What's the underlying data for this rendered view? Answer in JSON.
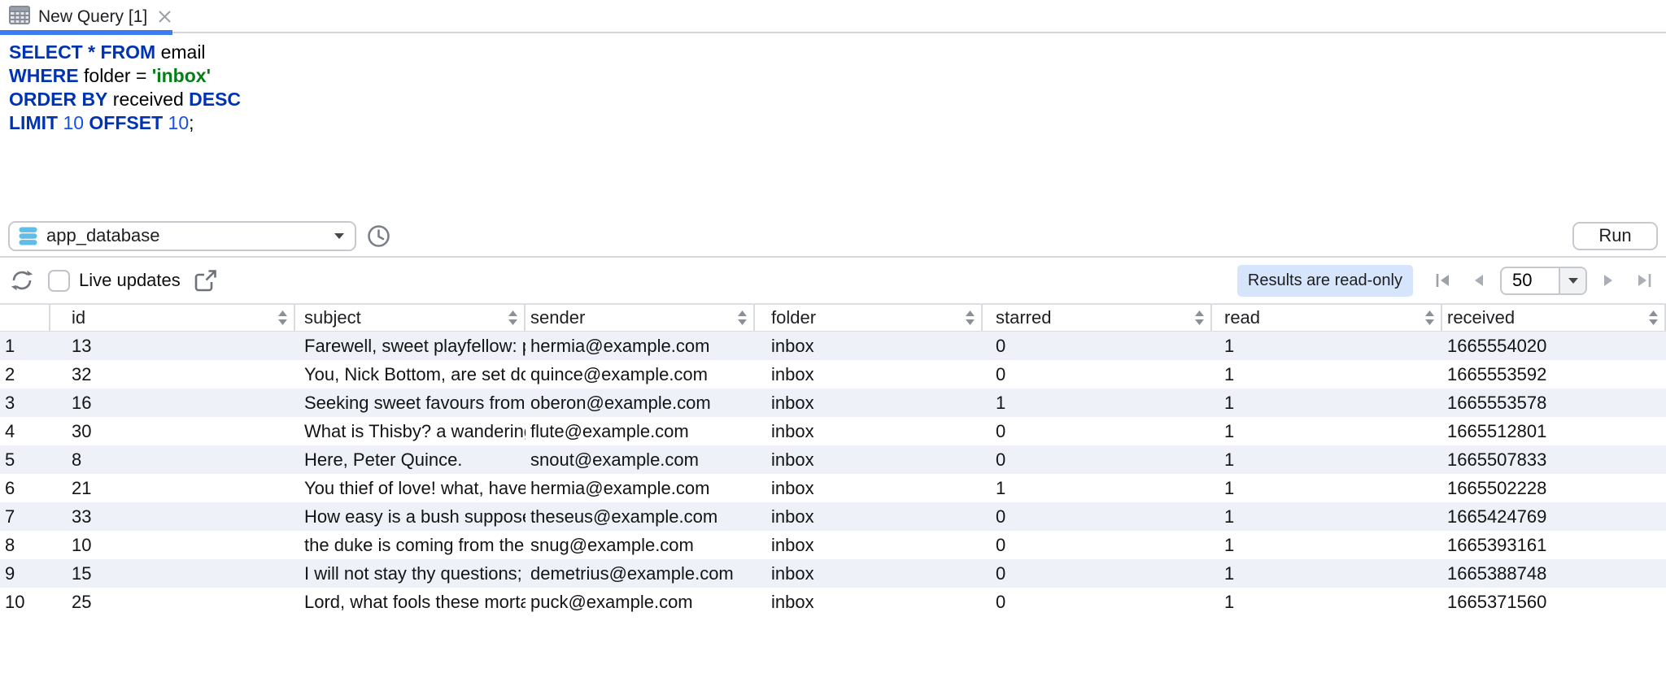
{
  "tab": {
    "title": "New Query [1]"
  },
  "sql_editor": {
    "lines": [
      {
        "tokens": [
          {
            "text": "SELECT",
            "type": "kw"
          },
          {
            "text": " ",
            "type": "pl"
          },
          {
            "text": "*",
            "type": "kw"
          },
          {
            "text": " ",
            "type": "pl"
          },
          {
            "text": "FROM",
            "type": "kw"
          },
          {
            "text": " email",
            "type": "pl"
          }
        ]
      },
      {
        "tokens": [
          {
            "text": "WHERE",
            "type": "kw"
          },
          {
            "text": " folder = ",
            "type": "pl"
          },
          {
            "text": "'inbox'",
            "type": "str"
          }
        ]
      },
      {
        "tokens": [
          {
            "text": "ORDER BY",
            "type": "kw"
          },
          {
            "text": " received ",
            "type": "pl"
          },
          {
            "text": "DESC",
            "type": "kw"
          }
        ]
      },
      {
        "tokens": [
          {
            "text": "LIMIT",
            "type": "kw"
          },
          {
            "text": " ",
            "type": "pl"
          },
          {
            "text": "10",
            "type": "num"
          },
          {
            "text": " ",
            "type": "pl"
          },
          {
            "text": "OFFSET",
            "type": "kw"
          },
          {
            "text": " ",
            "type": "pl"
          },
          {
            "text": "10",
            "type": "num"
          },
          {
            "text": ";",
            "type": "pl"
          }
        ]
      }
    ]
  },
  "query_bar": {
    "database_selector": {
      "value": "app_database",
      "icon": "database-icon"
    },
    "history_icon": "clock-icon",
    "run_button": "Run"
  },
  "results_toolbar": {
    "refresh_icon": "refresh-icon",
    "live_updates": {
      "checked": false,
      "label": "Live updates"
    },
    "open_in_new_icon": "open-in-new-window-icon",
    "readonly_badge": "Results are read-only",
    "pagination": {
      "first_icon": "first-page-icon",
      "prev_icon": "previous-page-icon",
      "page_size": "50",
      "next_icon": "next-page-icon",
      "last_icon": "last-page-icon"
    }
  },
  "results_table": {
    "columns": [
      {
        "key": "n",
        "label": "",
        "sortable": false
      },
      {
        "key": "id",
        "label": "id",
        "sortable": true
      },
      {
        "key": "subject",
        "label": "subject",
        "sortable": true
      },
      {
        "key": "sender",
        "label": "sender",
        "sortable": true
      },
      {
        "key": "folder",
        "label": "folder",
        "sortable": true
      },
      {
        "key": "starred",
        "label": "starred",
        "sortable": true
      },
      {
        "key": "read",
        "label": "read",
        "sortable": true
      },
      {
        "key": "received",
        "label": "received",
        "sortable": true
      }
    ],
    "rows": [
      {
        "n": "1",
        "id": "13",
        "subject": "Farewell, sweet playfellow: pray",
        "sender": "hermia@example.com",
        "folder": "inbox",
        "starred": "0",
        "read": "1",
        "received": "1665554020"
      },
      {
        "n": "2",
        "id": "32",
        "subject": "You, Nick Bottom, are set down",
        "sender": "quince@example.com",
        "folder": "inbox",
        "starred": "0",
        "read": "1",
        "received": "1665553592"
      },
      {
        "n": "3",
        "id": "16",
        "subject": "Seeking sweet favours from thi",
        "sender": "oberon@example.com",
        "folder": "inbox",
        "starred": "1",
        "read": "1",
        "received": "1665553578"
      },
      {
        "n": "4",
        "id": "30",
        "subject": "What is Thisby? a wandering kn",
        "sender": "flute@example.com",
        "folder": "inbox",
        "starred": "0",
        "read": "1",
        "received": "1665512801"
      },
      {
        "n": "5",
        "id": "8",
        "subject": "Here, Peter Quince.",
        "sender": "snout@example.com",
        "folder": "inbox",
        "starred": "0",
        "read": "1",
        "received": "1665507833"
      },
      {
        "n": "6",
        "id": "21",
        "subject": "You thief of love! what, have yo",
        "sender": "hermia@example.com",
        "folder": "inbox",
        "starred": "1",
        "read": "1",
        "received": "1665502228"
      },
      {
        "n": "7",
        "id": "33",
        "subject": "How easy is a bush supposed a",
        "sender": "theseus@example.com",
        "folder": "inbox",
        "starred": "0",
        "read": "1",
        "received": "1665424769"
      },
      {
        "n": "8",
        "id": "10",
        "subject": "the duke is coming from the te",
        "sender": "snug@example.com",
        "folder": "inbox",
        "starred": "0",
        "read": "1",
        "received": "1665393161"
      },
      {
        "n": "9",
        "id": "15",
        "subject": "I will not stay thy questions; let",
        "sender": "demetrius@example.com",
        "folder": "inbox",
        "starred": "0",
        "read": "1",
        "received": "1665388748"
      },
      {
        "n": "10",
        "id": "25",
        "subject": "Lord, what fools these mortals",
        "sender": "puck@example.com",
        "folder": "inbox",
        "starred": "0",
        "read": "1",
        "received": "1665371560"
      }
    ]
  },
  "colors": {
    "accent_blue": "#3d7cf0",
    "keyword": "#0033b3",
    "number": "#1750eb",
    "string": "#067d17",
    "stripe": "#eef1f7",
    "badge_bg": "#d7e5fc"
  }
}
